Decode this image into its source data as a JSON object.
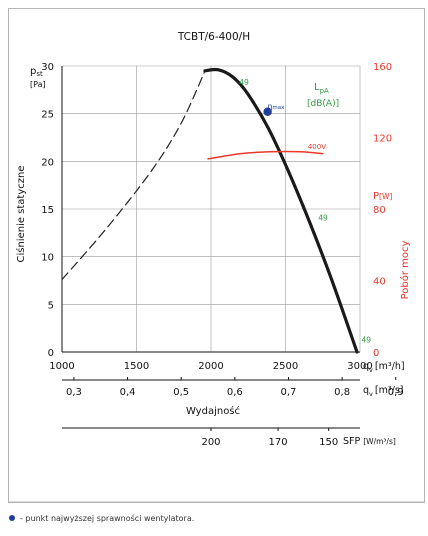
{
  "chart_data": {
    "type": "line",
    "title": "TCBT/6-400/H",
    "x_axis_top": {
      "label": "q",
      "label_sub": "v",
      "unit": "[m³/h]",
      "range": [
        1000,
        3000
      ],
      "ticks": [
        1000,
        1500,
        2000,
        2500,
        3000
      ]
    },
    "x_axis_eff": {
      "label": "q",
      "label_sub": "v",
      "unit": "[m³/s]",
      "ticks": [
        "0,3",
        "0,4",
        "0,5",
        "0,6",
        "0,7",
        "0,8",
        "0,9"
      ],
      "tick_values": [
        0.3,
        0.4,
        0.5,
        0.6,
        0.7,
        0.8,
        0.9
      ],
      "caption": "Wydajność"
    },
    "sfp_axis": {
      "label": "SFP",
      "unit": "[W/m³/s]",
      "ticks": [
        "200",
        "170",
        "150"
      ],
      "tick_m3h": [
        2000,
        2450,
        2790
      ]
    },
    "y_left": {
      "label": "Ciśnienie statyczne",
      "symbol": "p",
      "symbol_sub": "st",
      "unit": "[Pa]",
      "range": [
        0,
        30
      ],
      "ticks": [
        0,
        5,
        10,
        15,
        20,
        25,
        30
      ]
    },
    "y_right": {
      "label": "Pobór mocy",
      "symbol": "P",
      "unit": "[W]",
      "range": [
        0,
        160
      ],
      "ticks": [
        0,
        40,
        80,
        120,
        160
      ]
    },
    "grid": true,
    "legend": {
      "symbol": "L",
      "symbol_sub": "pA",
      "unit": "[dB(A)]"
    },
    "series": [
      {
        "id": "pressure-unstable",
        "style": "dashed",
        "color": "#222222",
        "x": [
          1000,
          1300,
          1600,
          1800,
          1960
        ],
        "y": [
          7.6,
          13.0,
          19.0,
          24.0,
          29.5
        ]
      },
      {
        "id": "pressure",
        "style": "solid",
        "color": "#1a1a1a",
        "x": [
          1960,
          2050,
          2150,
          2250,
          2400,
          2600,
          2800,
          2980
        ],
        "y": [
          29.5,
          29.6,
          28.8,
          27.0,
          23.0,
          16.0,
          8.0,
          0.0
        ]
      },
      {
        "id": "power",
        "name": "400V",
        "style": "solid",
        "color": "#e8392b",
        "axis": "right",
        "x": [
          1980,
          2200,
          2400,
          2600,
          2750
        ],
        "y": [
          108,
          111,
          112,
          112,
          111
        ]
      }
    ],
    "annotations": [
      {
        "text": "49",
        "x": 2190,
        "y": 28.0,
        "color": "#2f9e3f"
      },
      {
        "text": "49",
        "x": 2720,
        "y": 13.8,
        "color": "#2f9e3f"
      },
      {
        "text": "49",
        "x": 3010,
        "y": 1.0,
        "color": "#2f9e3f"
      },
      {
        "text": "η",
        "sub": "max",
        "x": 2380,
        "y": 25.5,
        "color": "#1f3f9a"
      }
    ],
    "max_efficiency_point": {
      "x": 2380,
      "y": 25.2,
      "color": "#1f3f9a"
    }
  },
  "footnote": "- punkt najwyższej sprawności wentylatora."
}
